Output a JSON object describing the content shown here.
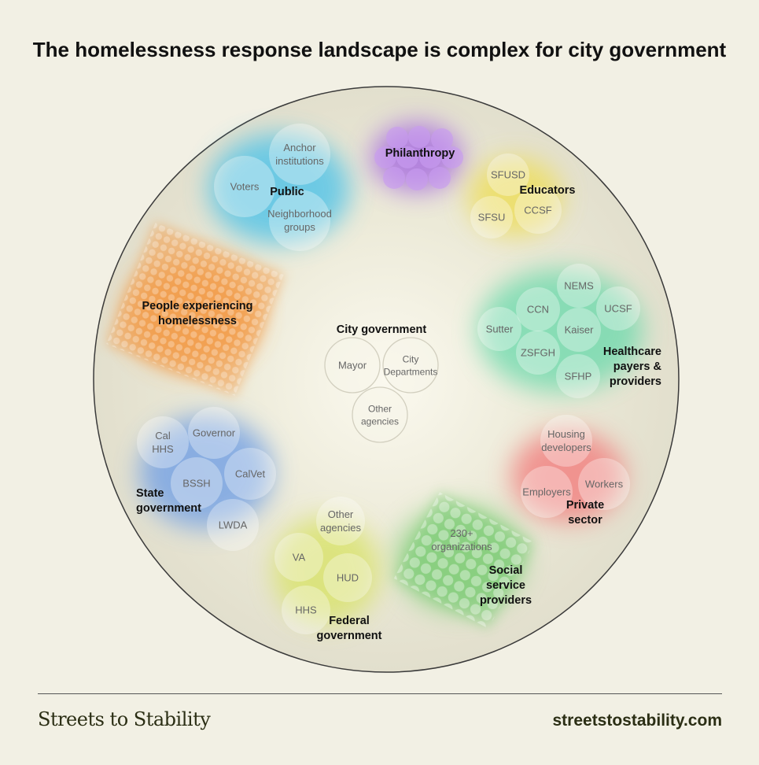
{
  "title": "The homelessness response landscape is complex for city government",
  "footer": {
    "brand": "Streets to Stability",
    "url": "streetstostability.com"
  },
  "colors": {
    "background": "#f2f0e4",
    "public": "#4fc3e8",
    "philanthropy": "#a66be0",
    "educators": "#eede5a",
    "healthcare": "#5fd8a8",
    "private_sector": "#f27f7f",
    "social_services": "#6fc96a",
    "federal": "#d9e36a",
    "state": "#6b9be6",
    "people": "#f39a45"
  },
  "groups": [
    {
      "id": "public",
      "label": "Public",
      "members": [
        "Anchor institutions",
        "Voters",
        "Neighborhood groups"
      ]
    },
    {
      "id": "philanthropy",
      "label": "Philanthropy",
      "members": []
    },
    {
      "id": "educators",
      "label": "Educators",
      "members": [
        "SFUSD",
        "CCSF",
        "SFSU"
      ]
    },
    {
      "id": "healthcare",
      "label": "Healthcare payers & providers",
      "members": [
        "NEMS",
        "CCN",
        "UCSF",
        "Sutter",
        "Kaiser",
        "ZSFGH",
        "SFHP"
      ]
    },
    {
      "id": "private_sector",
      "label": "Private sector",
      "members": [
        "Housing developers",
        "Employers",
        "Workers"
      ]
    },
    {
      "id": "social_services",
      "label": "Social service providers",
      "members": [
        "230+ organizations"
      ]
    },
    {
      "id": "federal",
      "label": "Federal government",
      "members": [
        "Other agencies",
        "VA",
        "HUD",
        "HHS"
      ]
    },
    {
      "id": "state",
      "label": "State government",
      "members": [
        "Cal HHS",
        "Governor",
        "BSSH",
        "CalVet",
        "LWDA"
      ]
    },
    {
      "id": "people",
      "label": "People experiencing homelessness",
      "members": []
    },
    {
      "id": "city",
      "label": "City government",
      "members": [
        "Mayor",
        "City Departments",
        "Other agencies"
      ]
    }
  ]
}
